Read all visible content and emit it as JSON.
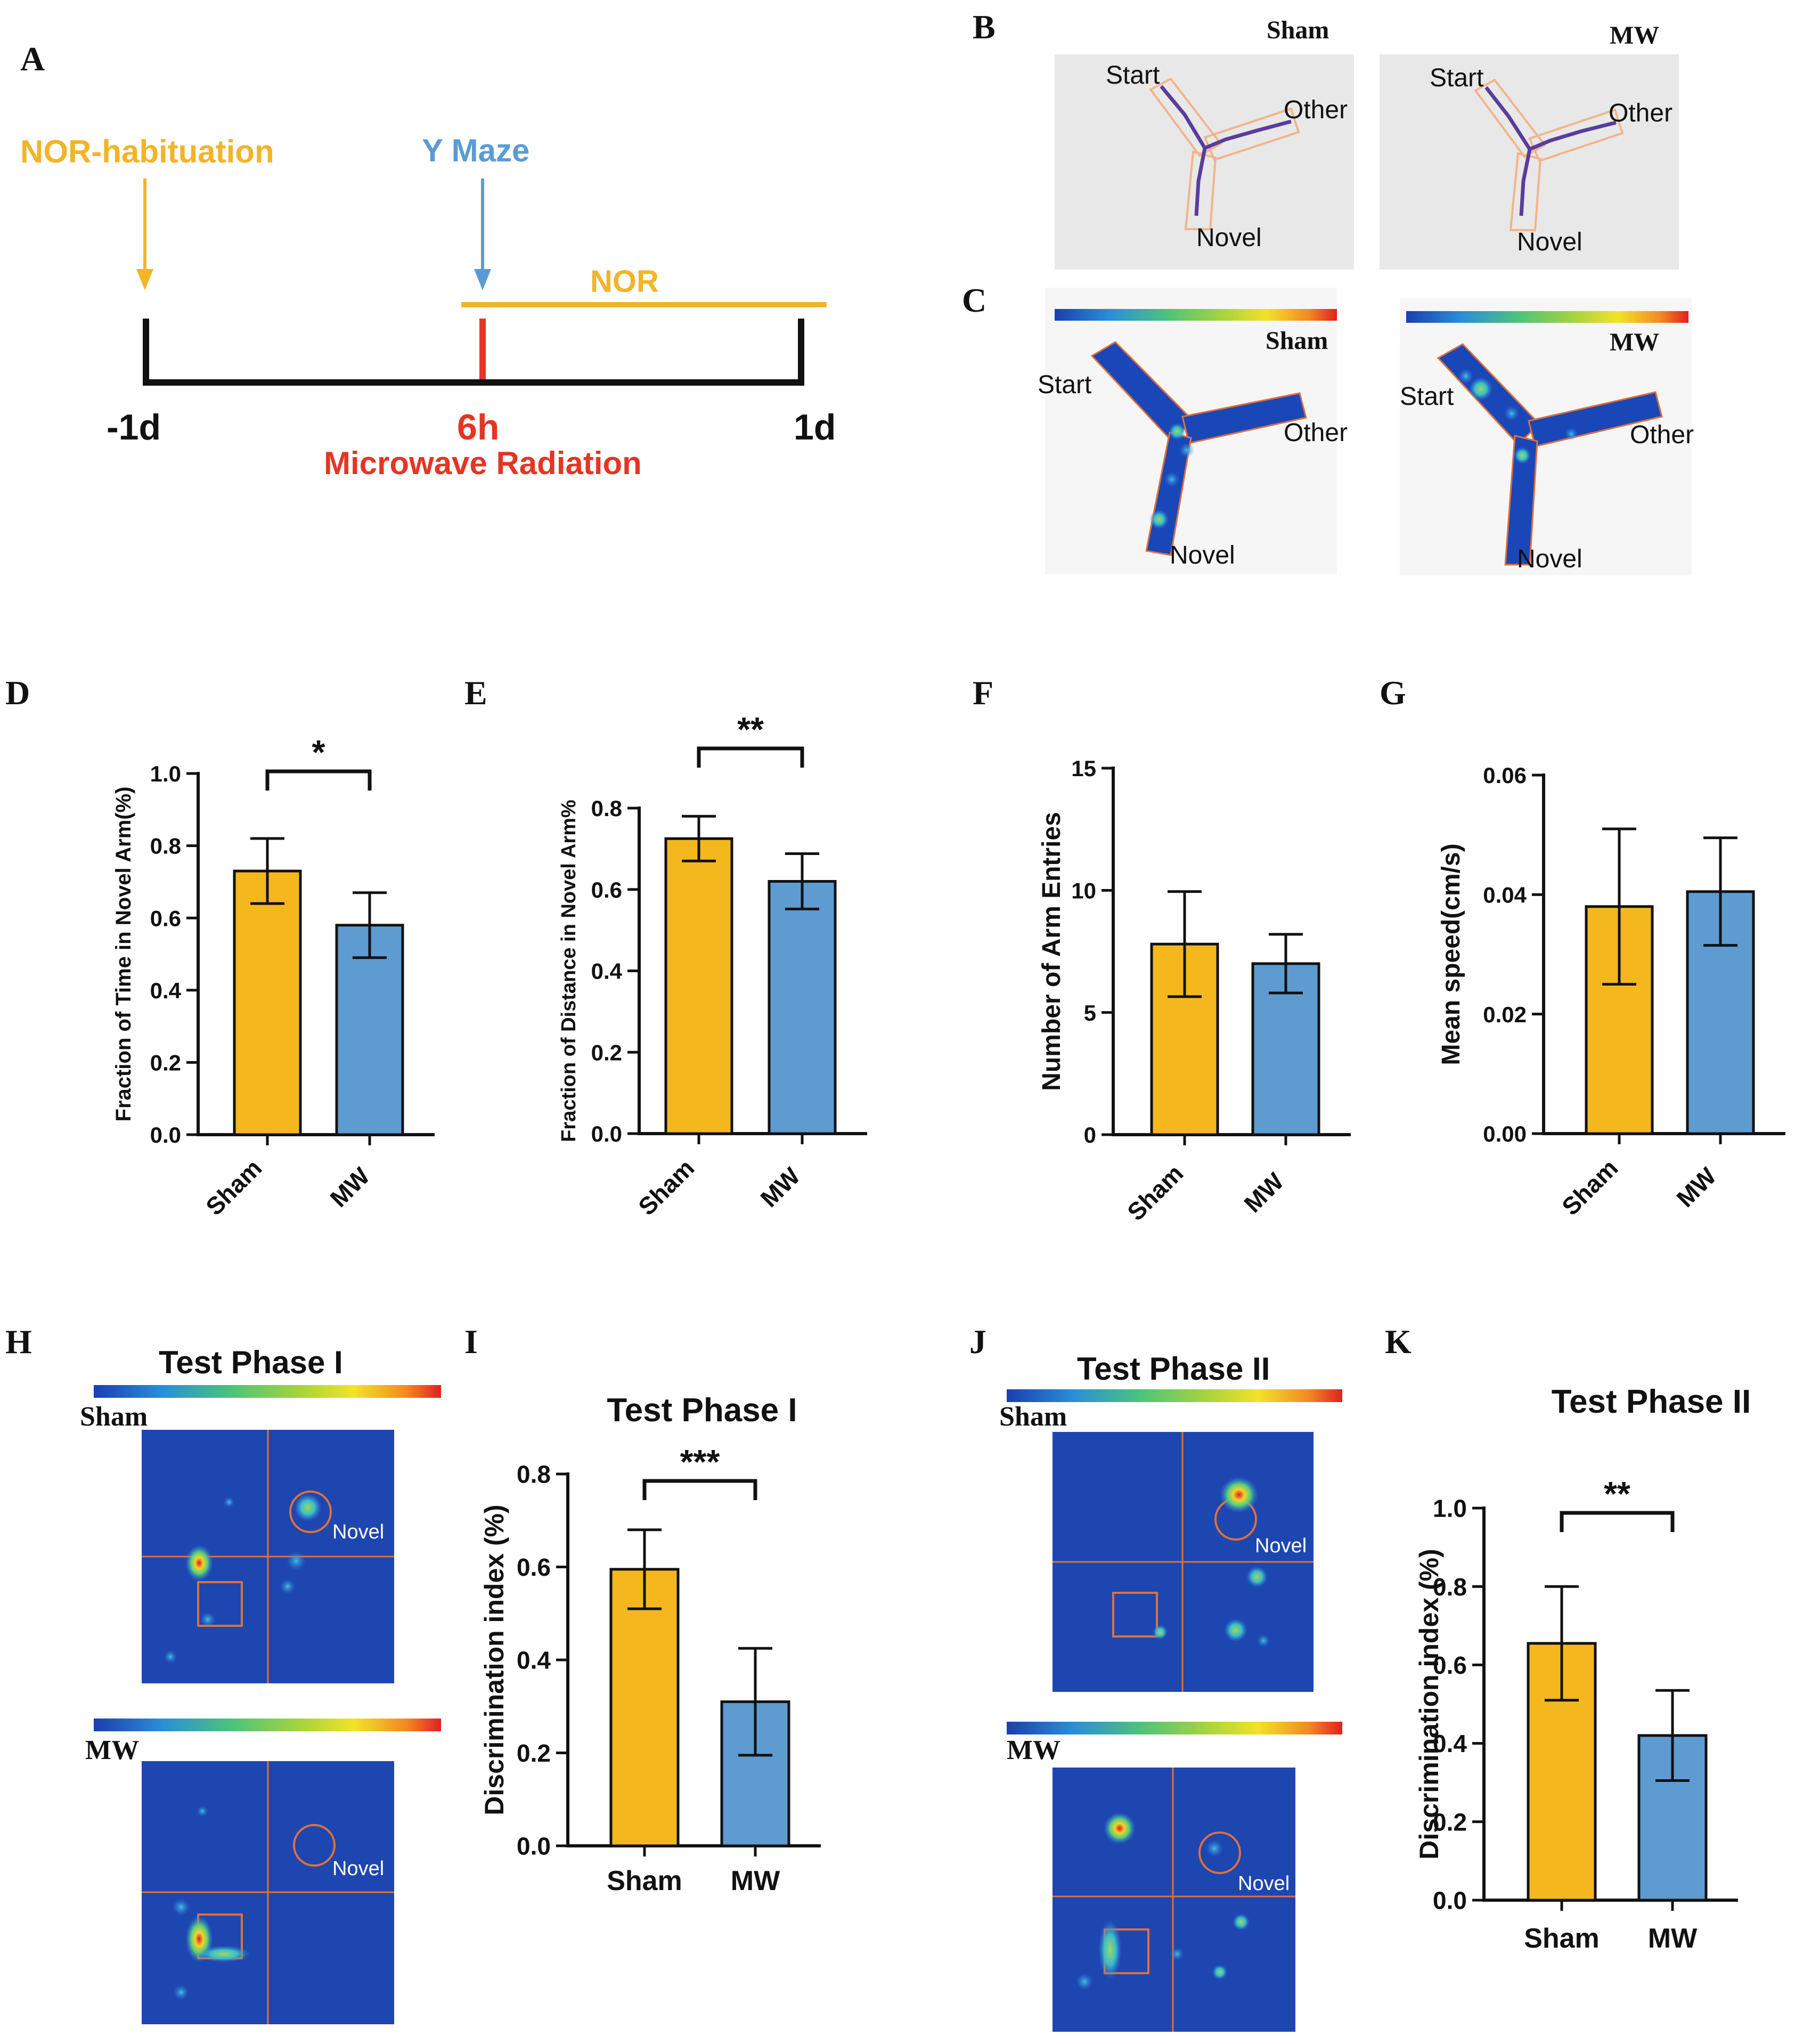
{
  "panel_letters": {
    "A": "A",
    "B": "B",
    "C": "C",
    "D": "D",
    "E": "E",
    "F": "F",
    "G": "G",
    "H": "H",
    "I": "I",
    "J": "J",
    "K": "K"
  },
  "timeline": {
    "habituation_label": "NOR-habituation",
    "ymaze_label": "Y Maze",
    "nor_label": "NOR",
    "day_minus": "-1d",
    "day_6h": "6h",
    "day_1": "1d",
    "radiation_label": "Microwave Radiation",
    "colors": {
      "habituation": "#f2b428",
      "ymaze": "#5b9bd5",
      "nor": "#f2b428",
      "radiation": "#e53524",
      "axis": "#111111"
    }
  },
  "maze": {
    "sham_label": "Sham",
    "mw_label": "MW",
    "arm_start": "Start",
    "arm_other": "Other",
    "arm_novel": "Novel"
  },
  "nor_maps": {
    "phase1_title": "Test Phase I",
    "phase2_title": "Test Phase II",
    "sham_label": "Sham",
    "mw_label": "MW",
    "novel_label": "Novel"
  },
  "chart_data": [
    {
      "id": "D",
      "type": "bar",
      "categories": [
        "Sham",
        "MW"
      ],
      "values": [
        0.73,
        0.58
      ],
      "errors": [
        0.09,
        0.09
      ],
      "ylabel": "Fraction of Time in Novel Arm(%)",
      "ylim": [
        0,
        1.0
      ],
      "ticks": [
        "0.0",
        "0.2",
        "0.4",
        "0.6",
        "0.8",
        "1.0"
      ],
      "significance": "*",
      "colors": [
        "#f4b71e",
        "#5d9bd1"
      ]
    },
    {
      "id": "E",
      "type": "bar",
      "categories": [
        "Sham",
        "MW"
      ],
      "values": [
        0.725,
        0.62
      ],
      "errors": [
        0.055,
        0.068
      ],
      "ylabel": "Fraction of Distance in Novel Arm%",
      "ylim": [
        0,
        0.8
      ],
      "ticks": [
        "0.0",
        "0.2",
        "0.4",
        "0.6",
        "0.8"
      ],
      "significance": "**",
      "colors": [
        "#f4b71e",
        "#5d9bd1"
      ]
    },
    {
      "id": "F",
      "type": "bar",
      "categories": [
        "Sham",
        "MW"
      ],
      "values": [
        7.8,
        7.0
      ],
      "errors": [
        2.15,
        1.2
      ],
      "ylabel": "Number of Arm Entries",
      "ylim": [
        0,
        15
      ],
      "ticks": [
        "0",
        "5",
        "10",
        "15"
      ],
      "significance": "",
      "colors": [
        "#f4b71e",
        "#5d9bd1"
      ]
    },
    {
      "id": "G",
      "type": "bar",
      "categories": [
        "Sham",
        "MW"
      ],
      "values": [
        0.038,
        0.0405
      ],
      "errors": [
        0.013,
        0.009
      ],
      "ylabel": "Mean speed(cm/s)",
      "ylim": [
        0,
        0.06
      ],
      "ticks": [
        "0.00",
        "0.02",
        "0.04",
        "0.06"
      ],
      "significance": "",
      "colors": [
        "#f4b71e",
        "#5d9bd1"
      ]
    },
    {
      "id": "I",
      "type": "bar",
      "title": "Test Phase I",
      "categories": [
        "Sham",
        "MW"
      ],
      "values": [
        0.595,
        0.31
      ],
      "errors": [
        0.085,
        0.115
      ],
      "ylabel": "Discrimination index (%)",
      "ylim": [
        0,
        0.8
      ],
      "ticks": [
        "0.0",
        "0.2",
        "0.4",
        "0.6",
        "0.8"
      ],
      "significance": "***",
      "colors": [
        "#f4b71e",
        "#5d9bd1"
      ]
    },
    {
      "id": "K",
      "type": "bar",
      "title": "Test Phase II",
      "categories": [
        "Sham",
        "MW"
      ],
      "values": [
        0.655,
        0.42
      ],
      "errors": [
        0.145,
        0.115
      ],
      "ylabel": "Discrimination index (%)",
      "ylim": [
        0,
        1.0
      ],
      "ticks": [
        "0.0",
        "0.2",
        "0.4",
        "0.6",
        "0.8",
        "1.0"
      ],
      "significance": "**",
      "colors": [
        "#f4b71e",
        "#5d9bd1"
      ]
    }
  ]
}
